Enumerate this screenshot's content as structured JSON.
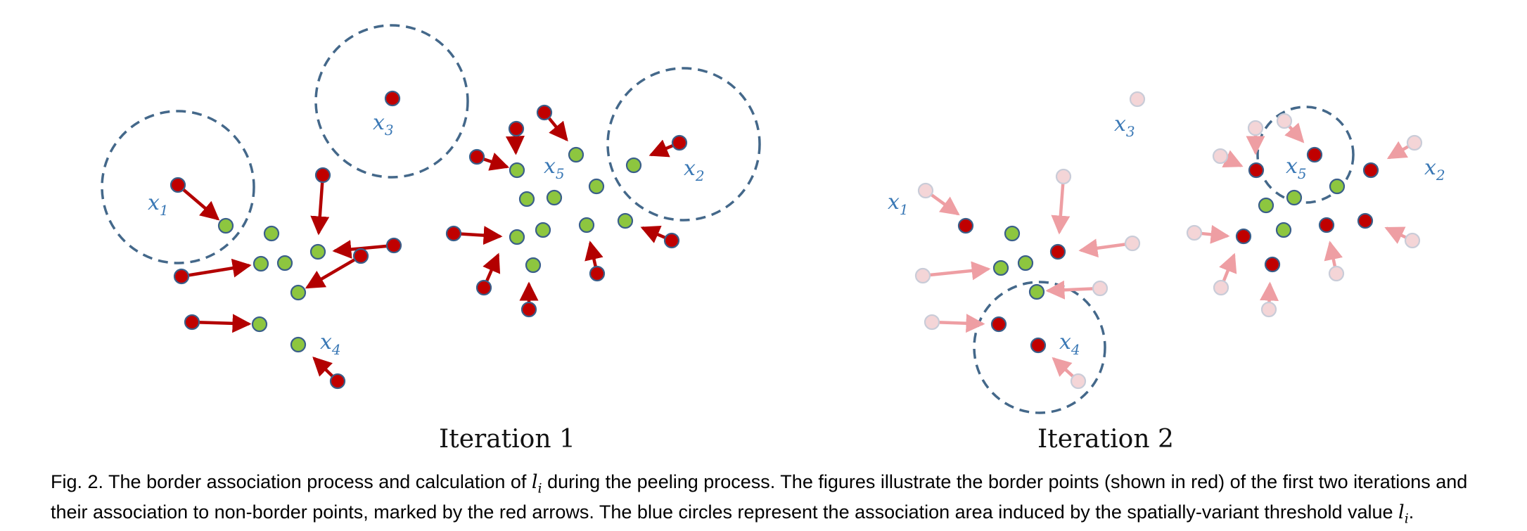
{
  "figure": {
    "panels": [
      {
        "label": "Iteration 1",
        "cluster_labels": [
          {
            "text": "x",
            "sub": "1"
          },
          {
            "text": "x",
            "sub": "3"
          },
          {
            "text": "x",
            "sub": "5"
          },
          {
            "text": "x",
            "sub": "2"
          },
          {
            "text": "x",
            "sub": "4"
          }
        ]
      },
      {
        "label": "Iteration 2",
        "cluster_labels": [
          {
            "text": "x",
            "sub": "3"
          },
          {
            "text": "x",
            "sub": "1"
          },
          {
            "text": "x",
            "sub": "5"
          },
          {
            "text": "x",
            "sub": "2"
          },
          {
            "text": "x",
            "sub": "4"
          }
        ]
      }
    ],
    "colors": {
      "border_point": "#c00000",
      "non_border_point": "#8dc63f",
      "faded_point": "#f4d5d7",
      "arrow": "#b30000",
      "faded_arrow": "#ee9ea3",
      "threshold_circle": "#44688a",
      "point_outline": "#3a5f8a",
      "label": "#3a78b5"
    }
  },
  "caption": {
    "part1": "Fig. 2. The border association process and calculation of ",
    "math1_base": "l",
    "math1_sub": "i",
    "part2": " during the peeling process. The figures illustrate the border points (shown in red) of the first two iterations and their association to non-border points, marked by the red arrows. The blue circles represent the association area induced by the spatially-variant threshold value ",
    "math2_base": "l",
    "math2_sub": "i",
    "part3": "."
  }
}
